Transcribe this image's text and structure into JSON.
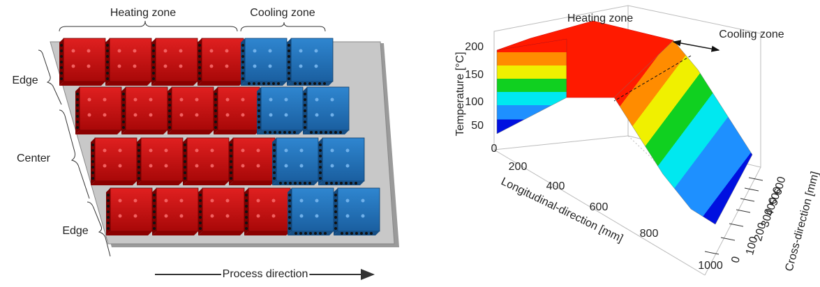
{
  "zone_diagram": {
    "heating_zone": "Heating zone",
    "cooling_zone": "Cooling zone",
    "edge_top": "Edge",
    "center": "Center",
    "edge_bottom": "Edge",
    "process_direction": "Process direction"
  },
  "surface_plot": {
    "heating_zone": "Heating zone",
    "cooling_zone": "Cooling zone",
    "z_axis": {
      "label": "Temperature [°C]",
      "ticks": [
        "200",
        "150",
        "100",
        "50"
      ]
    },
    "x_axis": {
      "label": "Longitudinal-direction [mm]",
      "ticks": [
        "0",
        "200",
        "400",
        "600",
        "800",
        "1000"
      ]
    },
    "y_axis": {
      "label": "Cross-direction [mm]",
      "ticks": [
        "0",
        "100",
        "200",
        "300",
        "400",
        "500",
        "600"
      ]
    }
  }
}
